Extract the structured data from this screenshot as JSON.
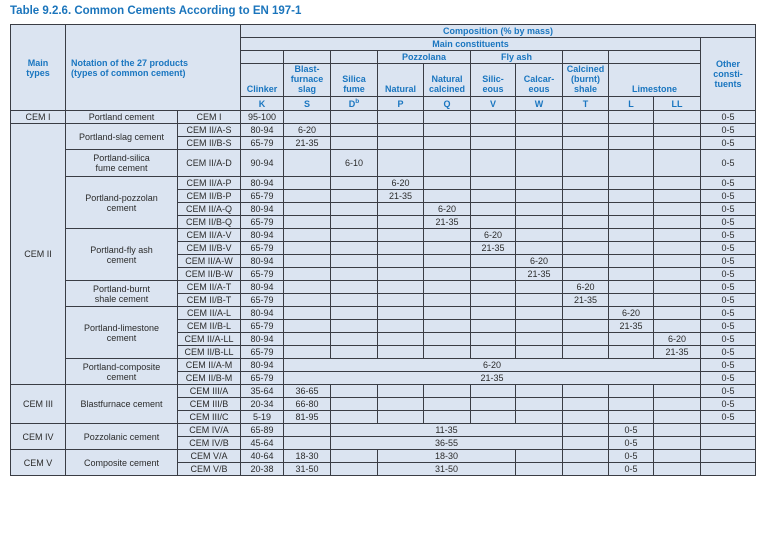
{
  "title": "Table 9.2.6. Common Cements According to EN 197-1",
  "colors": {
    "accent_blue": "#1b75bc",
    "header_text": "#1a76c0",
    "cell_background": "#dbe4f1",
    "grid_border": "#3a3d45",
    "body_text": "#2b2b2b"
  },
  "header_rows": [
    [
      {
        "t": "Main\ntypes",
        "rs": 5,
        "k": "corner-types"
      },
      {
        "t": "Notation of the 27 products\n(types of common cement)",
        "cs": 2,
        "rs": 5,
        "k": "corner-notation"
      },
      {
        "t": "Composition (% by mass)",
        "cs": 11
      }
    ],
    [
      {
        "t": "Main constituents",
        "cs": 10
      },
      {
        "t": "Other\nconsti-\ntuents",
        "rs": 4
      }
    ],
    [
      {
        "t": ""
      },
      {
        "t": ""
      },
      {
        "t": ""
      },
      {
        "t": "Pozzolana",
        "cs": 2
      },
      {
        "t": "Fly ash",
        "cs": 2
      },
      {
        "t": ""
      },
      {
        "t": "",
        "cs": 2
      }
    ],
    [
      {
        "t": "Clinker"
      },
      {
        "t": "Blast-\nfurnace\nslag"
      },
      {
        "t": "Silica\nfume"
      },
      {
        "t": "Natural"
      },
      {
        "t": "Natural\ncalcined"
      },
      {
        "t": "Silic-\neous"
      },
      {
        "t": "Calcar-\neous"
      },
      {
        "t": "Calcined\n(burnt)\nshale"
      },
      {
        "t": "Limestone",
        "cs": 2
      }
    ],
    [
      {
        "t": "K"
      },
      {
        "t": "S"
      },
      {
        "t": "D",
        "sup": "b"
      },
      {
        "t": "P"
      },
      {
        "t": "Q"
      },
      {
        "t": "V"
      },
      {
        "t": "W"
      },
      {
        "t": "T"
      },
      {
        "t": "L"
      },
      {
        "t": "LL"
      }
    ]
  ],
  "body_rows": [
    {
      "cells": [
        {
          "t": "CEM I",
          "k": "type"
        },
        {
          "t": "Portland cement",
          "k": "name"
        },
        {
          "t": "CEM I",
          "k": "code"
        },
        {
          "t": "95-100",
          "k": "val"
        },
        {
          "k": "val"
        },
        {
          "k": "val"
        },
        {
          "k": "val"
        },
        {
          "k": "val"
        },
        {
          "k": "val"
        },
        {
          "k": "val"
        },
        {
          "k": "val"
        },
        {
          "k": "val"
        },
        {
          "k": "val"
        },
        {
          "t": "0-5",
          "k": "other"
        }
      ]
    },
    {
      "cells": [
        {
          "t": "CEM II",
          "rs": 19,
          "k": "type"
        },
        {
          "t": "Portland-slag cement",
          "rs": 2,
          "k": "name"
        },
        {
          "t": "CEM II/A-S",
          "k": "code"
        },
        {
          "t": "80-94",
          "k": "val"
        },
        {
          "t": "6-20",
          "k": "val"
        },
        {
          "k": "val"
        },
        {
          "k": "val"
        },
        {
          "k": "val"
        },
        {
          "k": "val"
        },
        {
          "k": "val"
        },
        {
          "k": "val"
        },
        {
          "k": "val"
        },
        {
          "k": "val"
        },
        {
          "t": "0-5",
          "k": "other"
        }
      ]
    },
    {
      "cells": [
        {
          "t": "CEM II/B-S",
          "k": "code"
        },
        {
          "t": "65-79",
          "k": "val"
        },
        {
          "t": "21-35",
          "k": "val"
        },
        {
          "k": "val"
        },
        {
          "k": "val"
        },
        {
          "k": "val"
        },
        {
          "k": "val"
        },
        {
          "k": "val"
        },
        {
          "k": "val"
        },
        {
          "k": "val"
        },
        {
          "k": "val"
        },
        {
          "t": "0-5",
          "k": "other"
        }
      ]
    },
    {
      "tall": true,
      "cells": [
        {
          "t": "Portland-silica\nfume cement",
          "k": "name"
        },
        {
          "t": "CEM II/A-D",
          "k": "code"
        },
        {
          "t": "90-94",
          "k": "val"
        },
        {
          "k": "val"
        },
        {
          "t": "6-10",
          "k": "val"
        },
        {
          "k": "val"
        },
        {
          "k": "val"
        },
        {
          "k": "val"
        },
        {
          "k": "val"
        },
        {
          "k": "val"
        },
        {
          "k": "val"
        },
        {
          "k": "val"
        },
        {
          "t": "0-5",
          "k": "other"
        }
      ]
    },
    {
      "cells": [
        {
          "t": "Portland-pozzolan\ncement",
          "rs": 4,
          "k": "name"
        },
        {
          "t": "CEM II/A-P",
          "k": "code"
        },
        {
          "t": "80-94",
          "k": "val"
        },
        {
          "k": "val"
        },
        {
          "k": "val"
        },
        {
          "t": "6-20",
          "k": "val"
        },
        {
          "k": "val"
        },
        {
          "k": "val"
        },
        {
          "k": "val"
        },
        {
          "k": "val"
        },
        {
          "k": "val"
        },
        {
          "k": "val"
        },
        {
          "t": "0-5",
          "k": "other"
        }
      ]
    },
    {
      "cells": [
        {
          "t": "CEM II/B-P",
          "k": "code"
        },
        {
          "t": "65-79",
          "k": "val"
        },
        {
          "k": "val"
        },
        {
          "k": "val"
        },
        {
          "t": "21-35",
          "k": "val"
        },
        {
          "k": "val"
        },
        {
          "k": "val"
        },
        {
          "k": "val"
        },
        {
          "k": "val"
        },
        {
          "k": "val"
        },
        {
          "k": "val"
        },
        {
          "t": "0-5",
          "k": "other"
        }
      ]
    },
    {
      "cells": [
        {
          "t": "CEM II/A-Q",
          "k": "code"
        },
        {
          "t": "80-94",
          "k": "val"
        },
        {
          "k": "val"
        },
        {
          "k": "val"
        },
        {
          "k": "val"
        },
        {
          "t": "6-20",
          "k": "val"
        },
        {
          "k": "val"
        },
        {
          "k": "val"
        },
        {
          "k": "val"
        },
        {
          "k": "val"
        },
        {
          "k": "val"
        },
        {
          "t": "0-5",
          "k": "other"
        }
      ]
    },
    {
      "cells": [
        {
          "t": "CEM II/B-Q",
          "k": "code"
        },
        {
          "t": "65-79",
          "k": "val"
        },
        {
          "k": "val"
        },
        {
          "k": "val"
        },
        {
          "k": "val"
        },
        {
          "t": "21-35",
          "k": "val"
        },
        {
          "k": "val"
        },
        {
          "k": "val"
        },
        {
          "k": "val"
        },
        {
          "k": "val"
        },
        {
          "k": "val"
        },
        {
          "t": "0-5",
          "k": "other"
        }
      ]
    },
    {
      "cells": [
        {
          "t": "Portland-fly ash\ncement",
          "rs": 4,
          "k": "name"
        },
        {
          "t": "CEM II/A-V",
          "k": "code"
        },
        {
          "t": "80-94",
          "k": "val"
        },
        {
          "k": "val"
        },
        {
          "k": "val"
        },
        {
          "k": "val"
        },
        {
          "k": "val"
        },
        {
          "t": "6-20",
          "k": "val"
        },
        {
          "k": "val"
        },
        {
          "k": "val"
        },
        {
          "k": "val"
        },
        {
          "k": "val"
        },
        {
          "t": "0-5",
          "k": "other"
        }
      ]
    },
    {
      "cells": [
        {
          "t": "CEM II/B-V",
          "k": "code"
        },
        {
          "t": "65-79",
          "k": "val"
        },
        {
          "k": "val"
        },
        {
          "k": "val"
        },
        {
          "k": "val"
        },
        {
          "k": "val"
        },
        {
          "t": "21-35",
          "k": "val"
        },
        {
          "k": "val"
        },
        {
          "k": "val"
        },
        {
          "k": "val"
        },
        {
          "k": "val"
        },
        {
          "t": "0-5",
          "k": "other"
        }
      ]
    },
    {
      "cells": [
        {
          "t": "CEM II/A-W",
          "k": "code"
        },
        {
          "t": "80-94",
          "k": "val"
        },
        {
          "k": "val"
        },
        {
          "k": "val"
        },
        {
          "k": "val"
        },
        {
          "k": "val"
        },
        {
          "k": "val"
        },
        {
          "t": "6-20",
          "k": "val"
        },
        {
          "k": "val"
        },
        {
          "k": "val"
        },
        {
          "k": "val"
        },
        {
          "t": "0-5",
          "k": "other"
        }
      ]
    },
    {
      "cells": [
        {
          "t": "CEM II/B-W",
          "k": "code"
        },
        {
          "t": "65-79",
          "k": "val"
        },
        {
          "k": "val"
        },
        {
          "k": "val"
        },
        {
          "k": "val"
        },
        {
          "k": "val"
        },
        {
          "k": "val"
        },
        {
          "t": "21-35",
          "k": "val"
        },
        {
          "k": "val"
        },
        {
          "k": "val"
        },
        {
          "k": "val"
        },
        {
          "t": "0-5",
          "k": "other"
        }
      ]
    },
    {
      "cells": [
        {
          "t": "Portland-burnt\nshale cement",
          "rs": 2,
          "k": "name"
        },
        {
          "t": "CEM II/A-T",
          "k": "code"
        },
        {
          "t": "80-94",
          "k": "val"
        },
        {
          "k": "val"
        },
        {
          "k": "val"
        },
        {
          "k": "val"
        },
        {
          "k": "val"
        },
        {
          "k": "val"
        },
        {
          "k": "val"
        },
        {
          "t": "6-20",
          "k": "val"
        },
        {
          "k": "val"
        },
        {
          "k": "val"
        },
        {
          "t": "0-5",
          "k": "other"
        }
      ]
    },
    {
      "cells": [
        {
          "t": "CEM II/B-T",
          "k": "code"
        },
        {
          "t": "65-79",
          "k": "val"
        },
        {
          "k": "val"
        },
        {
          "k": "val"
        },
        {
          "k": "val"
        },
        {
          "k": "val"
        },
        {
          "k": "val"
        },
        {
          "k": "val"
        },
        {
          "t": "21-35",
          "k": "val"
        },
        {
          "k": "val"
        },
        {
          "k": "val"
        },
        {
          "t": "0-5",
          "k": "other"
        }
      ]
    },
    {
      "cells": [
        {
          "t": "Portland-limestone\ncement",
          "rs": 4,
          "k": "name"
        },
        {
          "t": "CEM II/A-L",
          "k": "code"
        },
        {
          "t": "80-94",
          "k": "val"
        },
        {
          "k": "val"
        },
        {
          "k": "val"
        },
        {
          "k": "val"
        },
        {
          "k": "val"
        },
        {
          "k": "val"
        },
        {
          "k": "val"
        },
        {
          "k": "val"
        },
        {
          "t": "6-20",
          "k": "val"
        },
        {
          "k": "val"
        },
        {
          "t": "0-5",
          "k": "other"
        }
      ]
    },
    {
      "cells": [
        {
          "t": "CEM II/B-L",
          "k": "code"
        },
        {
          "t": "65-79",
          "k": "val"
        },
        {
          "k": "val"
        },
        {
          "k": "val"
        },
        {
          "k": "val"
        },
        {
          "k": "val"
        },
        {
          "k": "val"
        },
        {
          "k": "val"
        },
        {
          "k": "val"
        },
        {
          "t": "21-35",
          "k": "val"
        },
        {
          "k": "val"
        },
        {
          "t": "0-5",
          "k": "other"
        }
      ]
    },
    {
      "cells": [
        {
          "t": "CEM II/A-LL",
          "k": "code"
        },
        {
          "t": "80-94",
          "k": "val"
        },
        {
          "k": "val"
        },
        {
          "k": "val"
        },
        {
          "k": "val"
        },
        {
          "k": "val"
        },
        {
          "k": "val"
        },
        {
          "k": "val"
        },
        {
          "k": "val"
        },
        {
          "k": "val"
        },
        {
          "t": "6-20",
          "k": "val"
        },
        {
          "t": "0-5",
          "k": "other"
        }
      ]
    },
    {
      "cells": [
        {
          "t": "CEM II/B-LL",
          "k": "code"
        },
        {
          "t": "65-79",
          "k": "val"
        },
        {
          "k": "val"
        },
        {
          "k": "val"
        },
        {
          "k": "val"
        },
        {
          "k": "val"
        },
        {
          "k": "val"
        },
        {
          "k": "val"
        },
        {
          "k": "val"
        },
        {
          "k": "val"
        },
        {
          "t": "21-35",
          "k": "val"
        },
        {
          "t": "0-5",
          "k": "other"
        }
      ]
    },
    {
      "cells": [
        {
          "t": "Portland-composite\ncement",
          "rs": 2,
          "k": "name"
        },
        {
          "t": "CEM II/A-M",
          "k": "code"
        },
        {
          "t": "80-94",
          "k": "val"
        },
        {
          "t": "6-20",
          "cs": 9,
          "k": "val"
        },
        {
          "t": "0-5",
          "k": "other"
        }
      ]
    },
    {
      "cells": [
        {
          "t": "CEM II/B-M",
          "k": "code"
        },
        {
          "t": "65-79",
          "k": "val"
        },
        {
          "t": "21-35",
          "cs": 9,
          "k": "val"
        },
        {
          "t": "0-5",
          "k": "other"
        }
      ]
    },
    {
      "cells": [
        {
          "t": "CEM III",
          "rs": 3,
          "k": "type"
        },
        {
          "t": "Blastfurnace cement",
          "rs": 3,
          "k": "name"
        },
        {
          "t": "CEM III/A",
          "k": "code"
        },
        {
          "t": "35-64",
          "k": "val"
        },
        {
          "t": "36-65",
          "k": "val"
        },
        {
          "k": "val"
        },
        {
          "k": "val"
        },
        {
          "k": "val"
        },
        {
          "k": "val"
        },
        {
          "k": "val"
        },
        {
          "k": "val"
        },
        {
          "k": "val"
        },
        {
          "k": "val"
        },
        {
          "t": "0-5",
          "k": "other"
        }
      ]
    },
    {
      "cells": [
        {
          "t": "CEM III/B",
          "k": "code"
        },
        {
          "t": "20-34",
          "k": "val"
        },
        {
          "t": "66-80",
          "k": "val"
        },
        {
          "k": "val"
        },
        {
          "k": "val"
        },
        {
          "k": "val"
        },
        {
          "k": "val"
        },
        {
          "k": "val"
        },
        {
          "k": "val"
        },
        {
          "k": "val"
        },
        {
          "k": "val"
        },
        {
          "t": "0-5",
          "k": "other"
        }
      ]
    },
    {
      "cells": [
        {
          "t": "CEM III/C",
          "k": "code"
        },
        {
          "t": "5-19",
          "k": "val"
        },
        {
          "t": "81-95",
          "k": "val"
        },
        {
          "k": "val"
        },
        {
          "k": "val"
        },
        {
          "k": "val"
        },
        {
          "k": "val"
        },
        {
          "k": "val"
        },
        {
          "k": "val"
        },
        {
          "k": "val"
        },
        {
          "k": "val"
        },
        {
          "t": "0-5",
          "k": "other"
        }
      ]
    },
    {
      "cells": [
        {
          "t": "CEM IV",
          "rs": 2,
          "k": "type"
        },
        {
          "t": "Pozzolanic cement",
          "rs": 2,
          "k": "name"
        },
        {
          "t": "CEM IV/A",
          "k": "code"
        },
        {
          "t": "65-89",
          "k": "val"
        },
        {
          "k": "val"
        },
        {
          "t": "11-35",
          "cs": 5,
          "k": "val"
        },
        {
          "k": "val"
        },
        {
          "t": "0-5",
          "k": "val"
        },
        {
          "k": "val"
        },
        {
          "k": "other"
        }
      ]
    },
    {
      "cells": [
        {
          "t": "CEM IV/B",
          "k": "code"
        },
        {
          "t": "45-64",
          "k": "val"
        },
        {
          "k": "val"
        },
        {
          "t": "36-55",
          "cs": 5,
          "k": "val"
        },
        {
          "k": "val"
        },
        {
          "t": "0-5",
          "k": "val"
        },
        {
          "k": "val"
        },
        {
          "k": "other"
        }
      ]
    },
    {
      "cells": [
        {
          "t": "CEM V",
          "rs": 2,
          "k": "type"
        },
        {
          "t": "Composite cement",
          "rs": 2,
          "k": "name"
        },
        {
          "t": "CEM V/A",
          "k": "code"
        },
        {
          "t": "40-64",
          "k": "val"
        },
        {
          "t": "18-30",
          "k": "val"
        },
        {
          "k": "val"
        },
        {
          "t": "18-30",
          "cs": 3,
          "k": "val"
        },
        {
          "k": "val"
        },
        {
          "k": "val"
        },
        {
          "t": "0-5",
          "k": "val"
        },
        {
          "k": "val"
        },
        {
          "k": "other"
        }
      ]
    },
    {
      "cells": [
        {
          "t": "CEM V/B",
          "k": "code"
        },
        {
          "t": "20-38",
          "k": "val"
        },
        {
          "t": "31-50",
          "k": "val"
        },
        {
          "k": "val"
        },
        {
          "t": "31-50",
          "cs": 3,
          "k": "val"
        },
        {
          "k": "val"
        },
        {
          "k": "val"
        },
        {
          "t": "0-5",
          "k": "val"
        },
        {
          "k": "val"
        },
        {
          "k": "other"
        }
      ]
    }
  ]
}
